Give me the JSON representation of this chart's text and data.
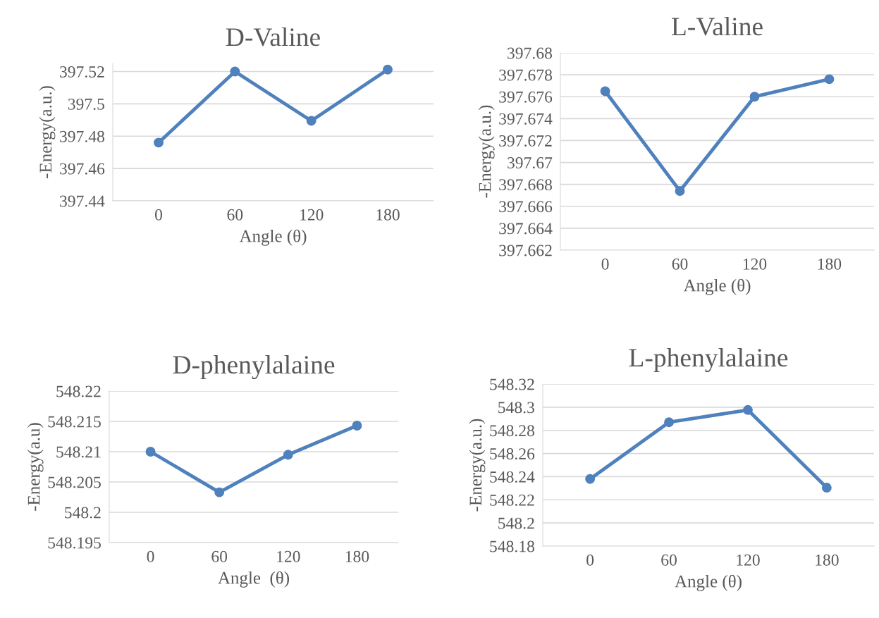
{
  "chart_data": [
    {
      "type": "line",
      "title": "D-Valine",
      "xlabel": "Angle (θ)",
      "ylabel": "-Energy(a.u.)",
      "categories": [
        "0",
        "60",
        "120",
        "180"
      ],
      "series": [
        {
          "color": "#4f81bd",
          "values": [
            397.476,
            397.52,
            397.4895,
            397.5212
          ]
        }
      ],
      "ylim": [
        397.44,
        397.525
      ],
      "yticks": [
        397.44,
        397.46,
        397.48,
        397.5,
        397.52
      ],
      "grid": "y",
      "marker": "circle",
      "line_style": "solid",
      "legend": false
    },
    {
      "type": "line",
      "title": "L-Valine",
      "xlabel": "Angle (θ)",
      "ylabel": "-Energy(a.u.)",
      "categories": [
        "0",
        "60",
        "120",
        "180"
      ],
      "series": [
        {
          "color": "#4f81bd",
          "values": [
            397.6765,
            397.6674,
            397.676,
            397.6776
          ]
        }
      ],
      "ylim": [
        397.662,
        397.68
      ],
      "yticks": [
        397.662,
        397.664,
        397.666,
        397.668,
        397.67,
        397.672,
        397.674,
        397.676,
        397.678,
        397.68
      ],
      "grid": "y",
      "marker": "circle",
      "line_style": "solid",
      "legend": false
    },
    {
      "type": "line",
      "title": "D-phenylalaine",
      "xlabel": "Angle  (θ)",
      "ylabel": "-Energy(a.u)",
      "categories": [
        "0",
        "60",
        "120",
        "180"
      ],
      "series": [
        {
          "color": "#4f81bd",
          "values": [
            548.21,
            548.2033,
            548.2095,
            548.2143
          ]
        }
      ],
      "ylim": [
        548.195,
        548.22
      ],
      "yticks": [
        548.195,
        548.2,
        548.205,
        548.21,
        548.215,
        548.22
      ],
      "grid": "y",
      "marker": "circle",
      "line_style": "solid",
      "legend": false
    },
    {
      "type": "line",
      "title": "L-phenylalaine",
      "xlabel": "Angle (θ)",
      "ylabel": "-Energy(a.u.)",
      "categories": [
        "0",
        "60",
        "120",
        "180"
      ],
      "series": [
        {
          "color": "#4f81bd",
          "values": [
            548.238,
            548.287,
            548.2976,
            548.2305
          ]
        }
      ],
      "ylim": [
        548.18,
        548.32
      ],
      "yticks": [
        548.18,
        548.2,
        548.22,
        548.24,
        548.26,
        548.28,
        548.3,
        548.32
      ],
      "grid": "y",
      "marker": "circle",
      "line_style": "solid",
      "legend": false
    }
  ]
}
